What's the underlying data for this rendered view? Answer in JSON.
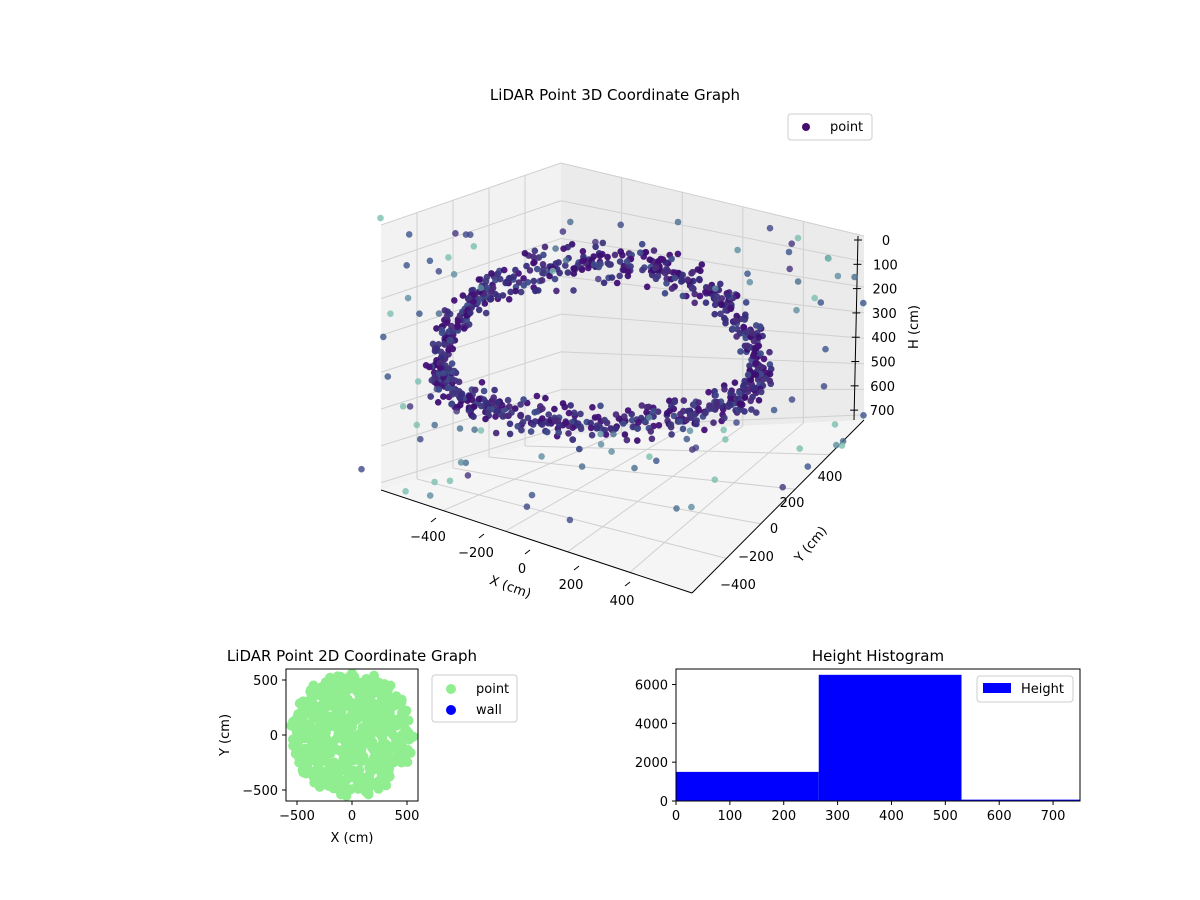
{
  "chart_data": [
    {
      "type": "scatter",
      "projection": "3d",
      "title": "LiDAR Point 3D Coordinate Graph",
      "xlabel": "X (cm)",
      "ylabel": "Y (cm)",
      "zlabel": "H (cm)",
      "x_ticks": [
        "−400",
        "−200",
        "0",
        "200",
        "400"
      ],
      "y_ticks": [
        "−400",
        "−200",
        "0",
        "200",
        "400"
      ],
      "z_ticks": [
        "0",
        "100",
        "200",
        "300",
        "400",
        "500",
        "600",
        "700"
      ],
      "xlim": [
        -550,
        550
      ],
      "ylim": [
        -550,
        550
      ],
      "zlim": [
        0,
        720
      ],
      "zaxis_inverted": true,
      "legend": [
        "point"
      ],
      "legend_position": "top-right",
      "colormap": "viridis",
      "grid": true,
      "series": [
        {
          "name": "point",
          "color": "#440f6e",
          "shape": "circular wall of dense points",
          "x": [
            -400,
            -200,
            0,
            200,
            400,
            300,
            0,
            -300,
            -500,
            -350,
            150,
            250,
            -80,
            60
          ],
          "y": [
            0,
            -350,
            -450,
            -350,
            0,
            250,
            380,
            250,
            -150,
            350,
            -380,
            150,
            300,
            430
          ],
          "h": [
            390,
            420,
            440,
            420,
            400,
            150,
            120,
            160,
            420,
            250,
            430,
            200,
            130,
            110
          ]
        }
      ]
    },
    {
      "type": "scatter",
      "title": "LiDAR Point 2D Coordinate Graph",
      "xlabel": "X (cm)",
      "ylabel": "Y (cm)",
      "x_ticks": [
        "−500",
        "0",
        "500"
      ],
      "y_ticks": [
        "500",
        "0",
        "−500"
      ],
      "xlim": [
        -600,
        600
      ],
      "ylim": [
        -600,
        600
      ],
      "legend": [
        "point",
        "wall"
      ],
      "legend_position": "right",
      "series": [
        {
          "name": "point",
          "color": "#90ee90",
          "x": [
            -500,
            -450,
            -350,
            -200,
            0,
            200,
            350,
            450,
            500,
            450,
            300,
            150,
            -100,
            -300,
            -480
          ],
          "y": [
            0,
            300,
            450,
            520,
            560,
            540,
            450,
            300,
            0,
            -250,
            -450,
            -540,
            -540,
            -450,
            -250
          ]
        },
        {
          "name": "wall",
          "color": "#0000ff",
          "x": [],
          "y": []
        }
      ]
    },
    {
      "type": "bar",
      "title": "Height Histogram",
      "x_ticks": [
        "0",
        "100",
        "200",
        "300",
        "400",
        "500",
        "600",
        "700"
      ],
      "y_ticks": [
        "0",
        "2000",
        "4000",
        "6000"
      ],
      "xlim": [
        0,
        750
      ],
      "ylim": [
        0,
        6800
      ],
      "legend": [
        "Height"
      ],
      "legend_position": "top-right",
      "color": "#0000ff",
      "bins": [
        {
          "x0": 0,
          "x1": 265,
          "value": 1500
        },
        {
          "x0": 265,
          "x1": 530,
          "value": 6500
        },
        {
          "x0": 530,
          "x1": 750,
          "value": 70
        }
      ]
    }
  ]
}
